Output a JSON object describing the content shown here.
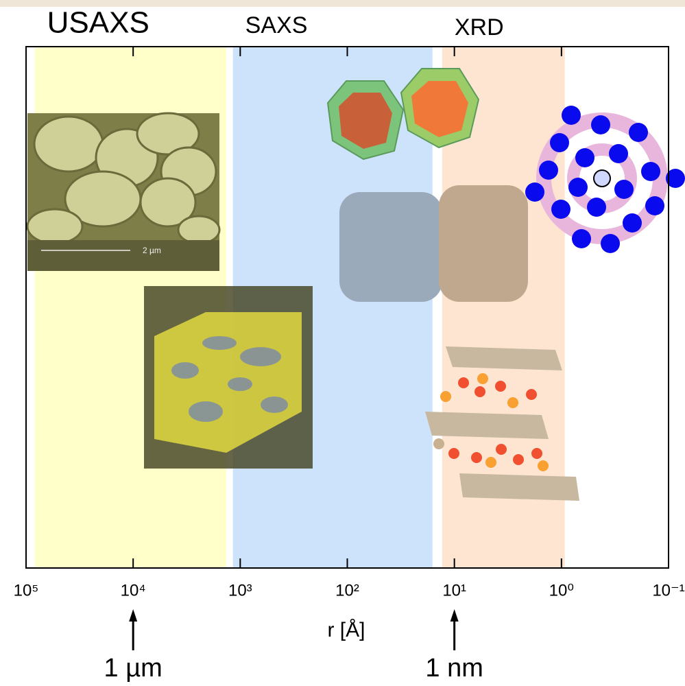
{
  "chart_data": {
    "type": "region",
    "x_label": "r  [Å]",
    "xscale": "log",
    "xlim": [
      100000,
      0.1
    ],
    "xticks": [
      {
        "value": 100000,
        "label": "10⁵"
      },
      {
        "value": 10000,
        "label": "10⁴"
      },
      {
        "value": 1000,
        "label": "10³"
      },
      {
        "value": 100,
        "label": "10²"
      },
      {
        "value": 10,
        "label": "10¹"
      },
      {
        "value": 1,
        "label": "10⁰"
      },
      {
        "value": 0.1,
        "label": "10⁻¹"
      }
    ],
    "series": [
      {
        "name": "USAXS",
        "color": "#ffffc4",
        "values": [
          83000,
          1350
        ]
      },
      {
        "name": "SAXS",
        "color": "#c6e0fb",
        "values": [
          1170,
          16
        ]
      },
      {
        "name": "XRD",
        "color": "#fde2cc",
        "values": [
          13,
          0.93
        ]
      }
    ],
    "annotations": [
      {
        "text": "1 µm",
        "x": 10000
      },
      {
        "text": "1 nm",
        "x": 10
      }
    ],
    "image_labels": [
      "2 µm"
    ]
  }
}
